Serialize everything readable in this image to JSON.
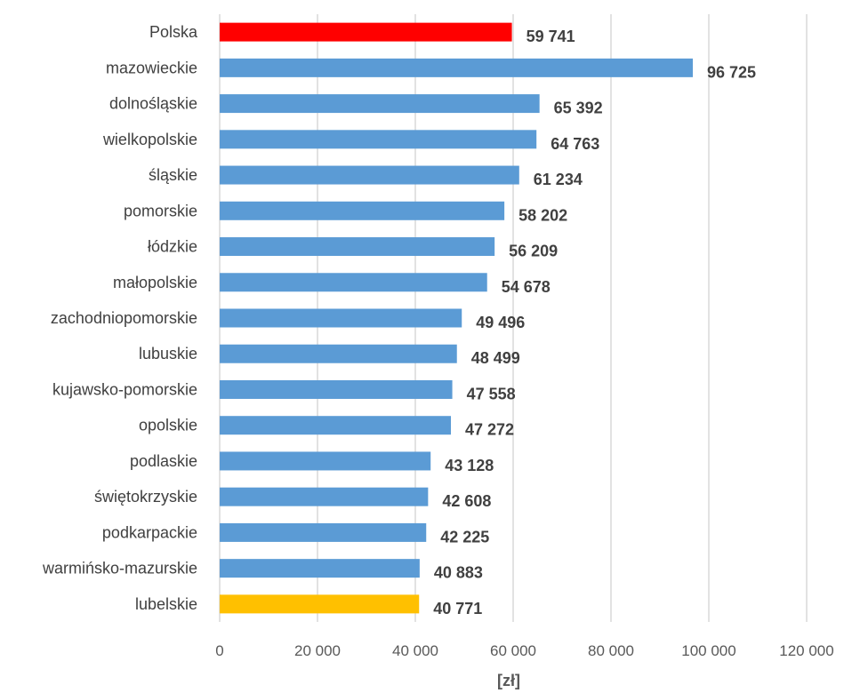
{
  "chart_data": {
    "type": "bar",
    "orientation": "horizontal",
    "title": "",
    "xlabel": "[zł]",
    "ylabel": "",
    "xlim": [
      0,
      120000
    ],
    "x_ticks": [
      0,
      20000,
      40000,
      60000,
      80000,
      100000,
      120000
    ],
    "x_tick_labels": [
      "0",
      "20 000",
      "40 000",
      "60 000",
      "80 000",
      "100 000",
      "120 000"
    ],
    "grid": true,
    "legend": "none",
    "categories": [
      "Polska",
      "mazowieckie",
      "dolnośląskie",
      "wielkopolskie",
      "śląskie",
      "pomorskie",
      "łódzkie",
      "małopolskie",
      "zachodniopomorskie",
      "lubuskie",
      "kujawsko-pomorskie",
      "opolskie",
      "podlaskie",
      "świętokrzyskie",
      "podkarpackie",
      "warmińsko-mazurskie",
      "lubelskie"
    ],
    "values": [
      59741,
      96725,
      65392,
      64763,
      61234,
      58202,
      56209,
      54678,
      49496,
      48499,
      47558,
      47272,
      43128,
      42608,
      42225,
      40883,
      40771
    ],
    "value_labels": [
      "59 741",
      "96 725",
      "65 392",
      "64 763",
      "61 234",
      "58 202",
      "56 209",
      "54 678",
      "49 496",
      "48 499",
      "47 558",
      "47 272",
      "43 128",
      "42 608",
      "42 225",
      "40 883",
      "40 771"
    ],
    "bar_colors": [
      "#ff0000",
      "#5b9bd5",
      "#5b9bd5",
      "#5b9bd5",
      "#5b9bd5",
      "#5b9bd5",
      "#5b9bd5",
      "#5b9bd5",
      "#5b9bd5",
      "#5b9bd5",
      "#5b9bd5",
      "#5b9bd5",
      "#5b9bd5",
      "#5b9bd5",
      "#5b9bd5",
      "#5b9bd5",
      "#ffc000"
    ]
  }
}
